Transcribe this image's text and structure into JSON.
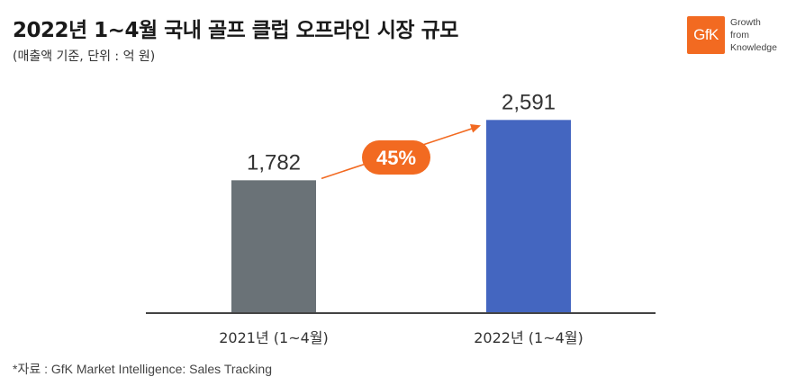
{
  "header": {
    "title": "2022년 1~4월 국내 골프 클럽 오프라인 시장 규모",
    "subtitle": "(매출액 기준, 단위 : 억 원)"
  },
  "logo": {
    "mark": "GfK",
    "lines": [
      "Growth",
      "from",
      "Knowledge"
    ],
    "color": "#f26a21"
  },
  "chart_data": {
    "type": "bar",
    "categories": [
      "2021년 (1~4월)",
      "2022년 (1~4월)"
    ],
    "values": [
      1782,
      2591
    ],
    "value_labels": [
      "1,782",
      "2,591"
    ],
    "colors": [
      "#6a7277",
      "#4466c0"
    ],
    "ylim": [
      0,
      2800
    ],
    "grid": false,
    "annotation": {
      "label": "45%",
      "color": "#f26a21"
    }
  },
  "footer": {
    "source": "*자료 : GfK Market Intelligence: Sales Tracking"
  }
}
